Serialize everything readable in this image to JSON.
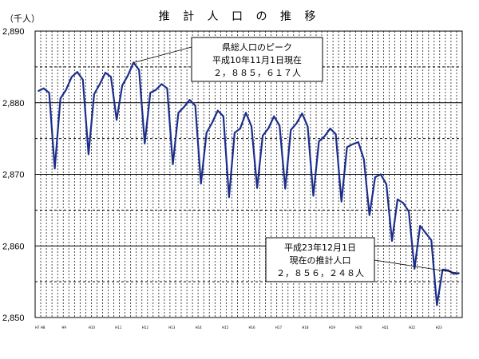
{
  "chart_data": {
    "type": "line",
    "title": "推 計 人 口 の 推 移",
    "unit_label": "（千人）",
    "ylim": [
      2850,
      2890
    ],
    "y_ticks": [
      {
        "value": 2850,
        "label": "2,850"
      },
      {
        "value": 2860,
        "label": "2,860"
      },
      {
        "value": 2870,
        "label": "2,870"
      },
      {
        "value": 2880,
        "label": "2,880"
      },
      {
        "value": 2890,
        "label": "2,890"
      }
    ],
    "x_tick_labels": [
      "H7 H8",
      "H9",
      "H10",
      "H11",
      "H12",
      "H13",
      "H14",
      "H15",
      "H16",
      "H17",
      "H18",
      "H19",
      "H20",
      "H21",
      "H22",
      "H23"
    ],
    "grid": {
      "horizontal": true,
      "vertical_dashed": true
    },
    "series": [
      {
        "color": "#1c2e8c",
        "values": [
          2881.6,
          2882.0,
          2881.4,
          2870.8,
          2880.6,
          2881.8,
          2883.6,
          2884.3,
          2883.2,
          2872.8,
          2881.2,
          2882.6,
          2884.2,
          2883.6,
          2877.6,
          2882.4,
          2883.8,
          2885.6,
          2884.6,
          2874.3,
          2881.4,
          2881.8,
          2882.6,
          2882.0,
          2871.4,
          2878.6,
          2879.4,
          2880.4,
          2879.6,
          2868.7,
          2875.8,
          2877.2,
          2878.9,
          2878.1,
          2866.8,
          2875.8,
          2876.4,
          2878.6,
          2876.7,
          2868.1,
          2875.4,
          2876.4,
          2878.1,
          2876.8,
          2868.0,
          2876.2,
          2877.1,
          2878.5,
          2876.7,
          2867.0,
          2874.6,
          2875.3,
          2876.4,
          2875.6,
          2866.2,
          2873.8,
          2874.2,
          2874.5,
          2872.1,
          2864.3,
          2869.6,
          2870.0,
          2868.6,
          2860.7,
          2866.5,
          2866.0,
          2864.8,
          2856.8,
          2862.8,
          2861.8,
          2860.8,
          2851.7,
          2856.7,
          2856.6,
          2856.1,
          2856.2
        ]
      }
    ],
    "annotations": [
      {
        "id": "peak",
        "lines": [
          "県総人口のピーク",
          "平成10年11月1日現在",
          "２，８８５，６１７人"
        ],
        "point_x": 17,
        "point_y": 2885.6
      },
      {
        "id": "latest",
        "lines": [
          "平成23年12月1日",
          "現在の推計人口",
          "２，８５６，２４８人"
        ],
        "point_x": 75,
        "point_y": 2856.2
      }
    ]
  }
}
